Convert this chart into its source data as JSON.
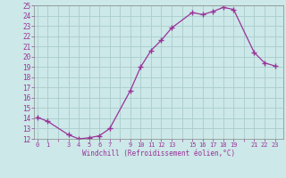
{
  "x": [
    0,
    1,
    3,
    4,
    5,
    6,
    7,
    9,
    10,
    11,
    12,
    13,
    15,
    16,
    17,
    18,
    19,
    21,
    22,
    23
  ],
  "y": [
    14.1,
    13.7,
    12.4,
    12.0,
    12.1,
    12.3,
    13.0,
    16.7,
    19.0,
    20.6,
    21.6,
    22.8,
    24.3,
    24.1,
    24.4,
    24.8,
    24.6,
    20.4,
    19.4,
    19.1
  ],
  "line_color": "#993399",
  "marker_color": "#993399",
  "bg_color": "#cce8e8",
  "grid_color": "#aacccc",
  "axis_color": "#555555",
  "tick_label_color": "#993399",
  "xlabel": "Windchill (Refroidissement éolien,°C)",
  "ylim": [
    12,
    25
  ],
  "yticks": [
    12,
    13,
    14,
    15,
    16,
    17,
    18,
    19,
    20,
    21,
    22,
    23,
    24,
    25
  ],
  "xticks": [
    0,
    1,
    3,
    4,
    5,
    6,
    7,
    9,
    10,
    11,
    12,
    13,
    15,
    16,
    17,
    18,
    19,
    21,
    22,
    23
  ],
  "xlim": [
    -0.3,
    23.8
  ]
}
